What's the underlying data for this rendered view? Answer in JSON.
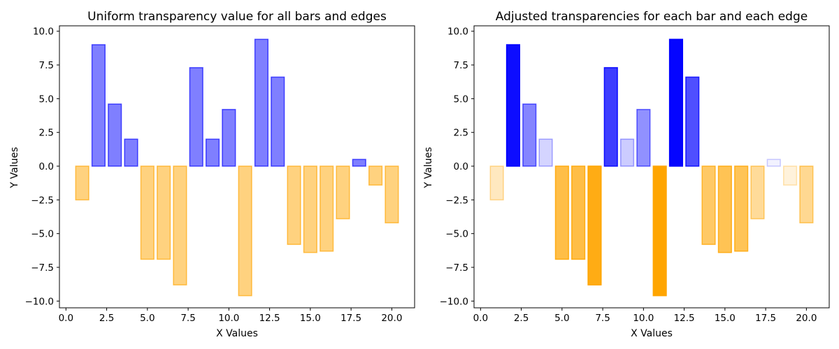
{
  "chart_data": [
    {
      "type": "bar",
      "title": "Uniform transparency value for all bars and edges",
      "xlabel": "X Values",
      "ylabel": "Y Values",
      "x": [
        1,
        2,
        3,
        4,
        5,
        6,
        7,
        8,
        9,
        10,
        11,
        12,
        13,
        14,
        15,
        16,
        17,
        18,
        19,
        20
      ],
      "values": [
        -2.5,
        9.0,
        4.6,
        2.0,
        -6.9,
        -6.9,
        -8.8,
        7.3,
        2.0,
        4.2,
        -9.6,
        9.4,
        6.6,
        -5.8,
        -6.4,
        -6.3,
        -3.9,
        0.5,
        -1.4,
        -4.2
      ],
      "alphas": [
        0.5,
        0.5,
        0.5,
        0.5,
        0.5,
        0.5,
        0.5,
        0.5,
        0.5,
        0.5,
        0.5,
        0.5,
        0.5,
        0.5,
        0.5,
        0.5,
        0.5,
        0.5,
        0.5,
        0.5
      ],
      "colors": {
        "positive": "#0000ff",
        "negative": "#ffa500"
      },
      "xlim": [
        -0.4,
        21.4
      ],
      "ylim": [
        -10.5,
        10.4
      ],
      "xticks": [
        "0.0",
        "2.5",
        "5.0",
        "7.5",
        "10.0",
        "12.5",
        "15.0",
        "17.5",
        "20.0"
      ],
      "yticks": [
        "10.0",
        "7.5",
        "5.0",
        "2.5",
        "0.0",
        "−2.5",
        "−5.0",
        "−7.5",
        "−10.0"
      ],
      "grid": false
    },
    {
      "type": "bar",
      "title": "Adjusted transparencies for each bar and each edge",
      "xlabel": "X Values",
      "ylabel": "Y Values",
      "x": [
        1,
        2,
        3,
        4,
        5,
        6,
        7,
        8,
        9,
        10,
        11,
        12,
        13,
        14,
        15,
        16,
        17,
        18,
        19,
        20
      ],
      "values": [
        -2.5,
        9.0,
        4.6,
        2.0,
        -6.9,
        -6.9,
        -8.8,
        7.3,
        2.0,
        4.2,
        -9.6,
        9.4,
        6.6,
        -5.8,
        -6.4,
        -6.3,
        -3.9,
        0.5,
        -1.4,
        -4.2
      ],
      "alphas": [
        0.25,
        0.95,
        0.48,
        0.17,
        0.72,
        0.72,
        0.92,
        0.76,
        0.2,
        0.43,
        1.0,
        0.98,
        0.69,
        0.6,
        0.67,
        0.66,
        0.4,
        0.05,
        0.14,
        0.43
      ],
      "colors": {
        "positive": "#0000ff",
        "negative": "#ffa500"
      },
      "xlim": [
        -0.4,
        21.4
      ],
      "ylim": [
        -10.5,
        10.4
      ],
      "xticks": [
        "0.0",
        "2.5",
        "5.0",
        "7.5",
        "10.0",
        "12.5",
        "15.0",
        "17.5",
        "20.0"
      ],
      "yticks": [
        "10.0",
        "7.5",
        "5.0",
        "2.5",
        "0.0",
        "−2.5",
        "−5.0",
        "−7.5",
        "−10.0"
      ],
      "grid": false
    }
  ]
}
